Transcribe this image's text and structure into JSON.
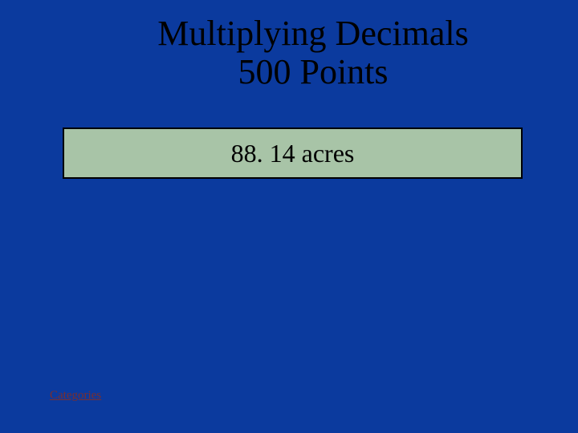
{
  "title": {
    "line1": "Multiplying Decimals",
    "line2": "500 Points"
  },
  "answer": {
    "text": "88. 14 acres",
    "background_color": "#a8c4a7",
    "border_color": "#000000",
    "text_color": "#000000",
    "fontsize": 32
  },
  "categories_link": {
    "label": "Categories",
    "color": "#7b2e2e",
    "fontsize": 15
  },
  "page": {
    "background_color": "#0b3a9e",
    "title_color": "#000000",
    "title_fontsize": 44
  }
}
